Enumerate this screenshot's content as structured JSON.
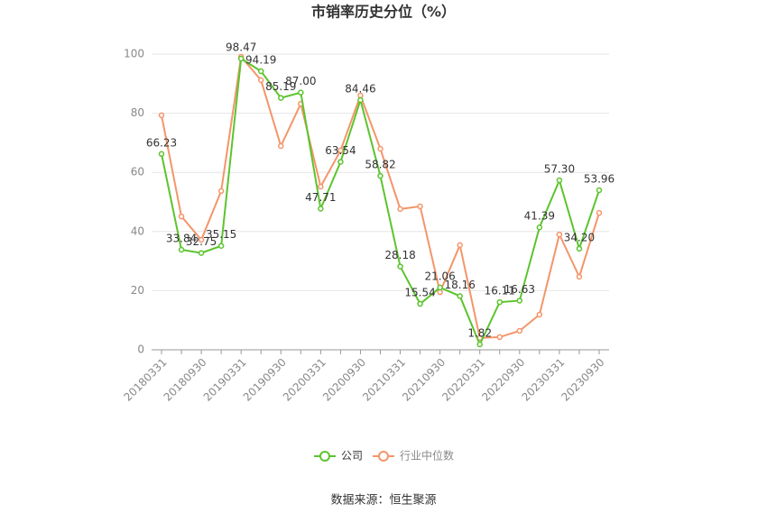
{
  "chart_data": {
    "type": "line",
    "title": "市销率历史分位（%）",
    "categories": [
      "20180331",
      null,
      "20180930",
      null,
      "20190331",
      null,
      "20190930",
      null,
      "20200331",
      null,
      "20200930",
      null,
      "20210331",
      null,
      "20210930",
      null,
      "20220331",
      null,
      "20220930",
      null,
      "20230331",
      null,
      "20230930"
    ],
    "series": [
      {
        "name": "公司",
        "color": "#5cc42e",
        "values": [
          66.23,
          33.84,
          32.75,
          35.15,
          98.47,
          94.19,
          85.19,
          87.0,
          47.71,
          63.54,
          84.46,
          58.82,
          28.18,
          15.54,
          21.06,
          18.16,
          1.82,
          16.11,
          16.63,
          41.39,
          57.3,
          34.2,
          53.96
        ],
        "value_labels": [
          "66.23",
          "33.84",
          "32.75",
          "35.15",
          "98.47",
          "94.19",
          "85.19",
          "87.00",
          "47.71",
          "63.54",
          "84.46",
          "58.82",
          "28.18",
          "15.54",
          "21.06",
          "18.16",
          "1.82",
          "16.11",
          "16.63",
          "41.39",
          "57.30",
          "34.20",
          "53.96"
        ]
      },
      {
        "name": "行业中位数",
        "color": "#f4956a",
        "values": [
          79.3,
          45.1,
          37.2,
          53.7,
          99.1,
          91.2,
          68.9,
          83.2,
          55.2,
          67.4,
          86.0,
          68.0,
          47.6,
          48.5,
          19.5,
          35.4,
          4.0,
          4.3,
          6.4,
          11.9,
          39.0,
          24.7,
          46.3
        ]
      }
    ],
    "ylim": [
      0,
      100
    ],
    "yticks": [
      0,
      20,
      40,
      60,
      80,
      100
    ],
    "grid": true,
    "source": "数据来源：恒生聚源"
  }
}
